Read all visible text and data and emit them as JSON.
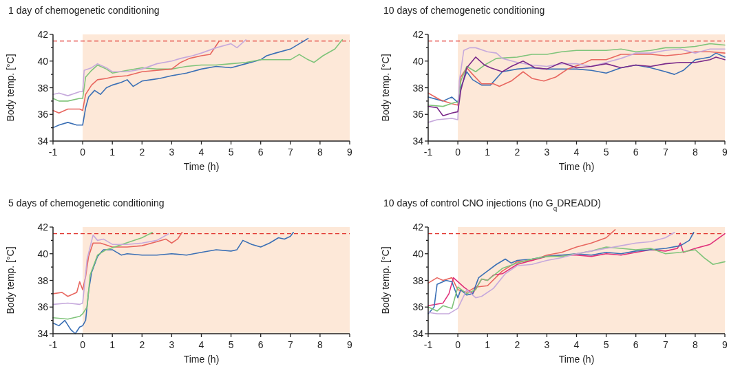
{
  "chart_data": [
    {
      "type": "line",
      "title": "1 day of chemogenetic conditioning",
      "xlabel": "Time (h)",
      "ylabel": "Body temp. [°C]",
      "xlim": [
        -1,
        9
      ],
      "xticks": [
        -1,
        0,
        1,
        2,
        3,
        4,
        5,
        6,
        7,
        8,
        9
      ],
      "ylim": [
        34,
        42
      ],
      "yticks": [
        34,
        {
          "value": 35,
          "label": null
        },
        36,
        {
          "value": 37,
          "label": null
        },
        38,
        {
          "value": 39,
          "label": null
        },
        40,
        {
          "value": 41,
          "label": null
        },
        42
      ],
      "ref_lines": [
        {
          "axis": "y",
          "value": 41.5,
          "color": "#e0302a",
          "line_style": "dashed"
        }
      ],
      "bands": [
        {
          "axis": "x",
          "from": 0,
          "to": 9,
          "color": "#fde8d8"
        }
      ],
      "series": [
        {
          "color": "#3a6fb5",
          "x": [
            -1,
            -0.8,
            -0.5,
            -0.2,
            0,
            0.1,
            0.2,
            0.4,
            0.6,
            0.8,
            1.0,
            1.3,
            1.5,
            1.7,
            2.0,
            2.3,
            2.6,
            3.0,
            3.5,
            4.0,
            4.5,
            5.0,
            5.5,
            6.0,
            6.2,
            6.5,
            7.0,
            7.3,
            7.6
          ],
          "values": [
            35.0,
            35.2,
            35.4,
            35.2,
            35.2,
            36.5,
            37.3,
            37.8,
            37.5,
            38.0,
            38.2,
            38.4,
            38.6,
            38.1,
            38.5,
            38.6,
            38.7,
            38.9,
            39.1,
            39.4,
            39.6,
            39.5,
            39.8,
            40.1,
            40.4,
            40.6,
            40.9,
            41.3,
            41.7
          ]
        },
        {
          "color": "#7fc47a",
          "x": [
            -1,
            -0.8,
            -0.5,
            -0.1,
            0,
            0.1,
            0.3,
            0.5,
            0.8,
            1.0,
            1.5,
            2.0,
            2.5,
            3.0,
            3.5,
            4.0,
            4.5,
            5.0,
            5.5,
            6.0,
            6.5,
            7.0,
            7.3,
            7.6,
            7.8,
            8.1,
            8.5,
            8.75
          ],
          "values": [
            37.2,
            37.0,
            37.0,
            37.2,
            37.2,
            38.8,
            39.3,
            39.7,
            39.4,
            39.1,
            39.3,
            39.5,
            39.4,
            39.4,
            39.6,
            39.7,
            39.7,
            39.8,
            39.9,
            40.1,
            40.1,
            40.1,
            40.5,
            40.1,
            39.9,
            40.4,
            40.9,
            41.6
          ]
        },
        {
          "color": "#e8665f",
          "x": [
            -1,
            -0.8,
            -0.5,
            -0.1,
            0,
            0.1,
            0.3,
            0.5,
            0.8,
            1.0,
            1.5,
            2.0,
            2.5,
            3.0,
            3.3,
            3.6,
            4.0,
            4.3,
            4.6
          ],
          "values": [
            36.3,
            36.1,
            36.4,
            36.4,
            36.3,
            37.5,
            38.2,
            38.6,
            38.7,
            38.8,
            38.9,
            39.2,
            39.3,
            39.4,
            39.9,
            40.2,
            40.4,
            40.5,
            41.5
          ]
        },
        {
          "color": "#c6a9dc",
          "x": [
            -1,
            -0.8,
            -0.5,
            -0.1,
            0,
            0.05,
            0.3,
            0.5,
            0.8,
            1.0,
            1.5,
            2.0,
            2.5,
            3.0,
            3.3,
            3.7,
            4.0,
            4.5,
            5.0,
            5.2,
            5.5
          ],
          "values": [
            37.5,
            37.6,
            37.4,
            37.7,
            37.7,
            39.3,
            39.5,
            39.8,
            39.5,
            39.2,
            39.2,
            39.4,
            39.8,
            40.0,
            40.2,
            40.4,
            40.6,
            41.0,
            41.3,
            41.0,
            41.6
          ]
        }
      ]
    },
    {
      "type": "line",
      "title": "10 days of chemogenetic conditioning",
      "xlabel": "Time (h)",
      "ylabel": "Body temp. [°C]",
      "xlim": [
        -1,
        9
      ],
      "xticks": [
        -1,
        0,
        1,
        2,
        3,
        4,
        5,
        6,
        7,
        8,
        9
      ],
      "ylim": [
        34,
        42
      ],
      "yticks": [
        34,
        {
          "value": 35,
          "label": null
        },
        36,
        {
          "value": 37,
          "label": null
        },
        38,
        {
          "value": 39,
          "label": null
        },
        40,
        {
          "value": 41,
          "label": null
        },
        42
      ],
      "ref_lines": [
        {
          "axis": "y",
          "value": 41.5,
          "color": "#e0302a",
          "line_style": "dashed"
        }
      ],
      "bands": [
        {
          "axis": "x",
          "from": 0,
          "to": 9,
          "color": "#fde8d8"
        }
      ],
      "series": [
        {
          "color": "#3a6fb5",
          "x": [
            -1,
            -0.5,
            -0.2,
            0,
            0.1,
            0.3,
            0.5,
            0.8,
            1.1,
            1.5,
            2.0,
            2.5,
            3.0,
            3.5,
            4.0,
            4.5,
            5.0,
            5.5,
            6.0,
            6.5,
            7.0,
            7.3,
            7.6,
            8.0,
            8.5,
            8.7,
            9.0
          ],
          "values": [
            37.3,
            37.0,
            37.3,
            36.9,
            38.0,
            39.2,
            38.6,
            38.2,
            38.2,
            39.2,
            39.4,
            39.5,
            39.4,
            39.4,
            39.4,
            39.3,
            39.1,
            39.5,
            39.7,
            39.5,
            39.2,
            39.0,
            39.3,
            40.1,
            40.3,
            40.6,
            40.3
          ]
        },
        {
          "color": "#e8665f",
          "x": [
            -1,
            -0.6,
            -0.2,
            0,
            0.1,
            0.3,
            0.5,
            0.8,
            1.2,
            1.4,
            1.8,
            2.2,
            2.5,
            2.9,
            3.3,
            3.7,
            4.2,
            4.5,
            5.0,
            5.5,
            6.0,
            6.5,
            7.0,
            7.5,
            8.0,
            8.5,
            9.0
          ],
          "values": [
            37.6,
            37.1,
            36.8,
            36.7,
            38.8,
            39.5,
            39.0,
            38.3,
            38.3,
            38.1,
            38.5,
            39.2,
            38.7,
            38.5,
            38.8,
            39.4,
            39.8,
            40.1,
            40.1,
            40.5,
            40.5,
            40.5,
            40.4,
            40.5,
            40.7,
            40.7,
            40.6
          ]
        },
        {
          "color": "#7fc47a",
          "x": [
            -1,
            -0.5,
            -0.1,
            0,
            0.1,
            0.3,
            0.6,
            0.9,
            1.3,
            2.0,
            2.5,
            3.0,
            3.5,
            4.0,
            4.5,
            5.0,
            5.5,
            6.0,
            6.5,
            7.0,
            7.5,
            8.0,
            8.5,
            9.0
          ],
          "values": [
            36.7,
            36.6,
            36.9,
            36.9,
            38.5,
            39.6,
            39.2,
            39.7,
            40.2,
            40.3,
            40.5,
            40.5,
            40.7,
            40.8,
            40.8,
            40.8,
            40.9,
            40.7,
            40.8,
            41.0,
            41.0,
            41.1,
            41.3,
            41.2
          ]
        },
        {
          "color": "#c6a9dc",
          "x": [
            -1,
            -0.7,
            -0.2,
            0,
            0.05,
            0.2,
            0.4,
            0.6,
            1.0,
            1.3,
            1.5,
            2.0,
            2.5,
            3.0,
            3.5,
            4.0,
            4.5,
            5.0,
            5.5,
            6.0,
            6.5,
            7.0,
            7.5,
            8.0,
            8.5,
            9.0
          ],
          "values": [
            35.4,
            35.6,
            35.7,
            35.6,
            38.5,
            40.8,
            41.0,
            41.0,
            40.7,
            40.6,
            40.2,
            39.9,
            39.7,
            39.6,
            39.8,
            39.8,
            39.6,
            39.9,
            40.2,
            40.6,
            40.6,
            40.8,
            40.9,
            40.6,
            40.9,
            40.9
          ]
        },
        {
          "color": "#7b2a8a",
          "x": [
            -1,
            -0.7,
            -0.5,
            -0.2,
            0,
            0.1,
            0.3,
            0.6,
            0.9,
            1.1,
            1.5,
            1.8,
            2.2,
            2.6,
            3.0,
            3.5,
            4.0,
            4.5,
            5.0,
            5.5,
            6.0,
            6.5,
            7.0,
            7.5,
            8.0,
            8.5,
            8.7,
            9.0
          ],
          "values": [
            36.6,
            36.5,
            35.9,
            36.1,
            36.2,
            37.8,
            39.5,
            40.3,
            39.7,
            39.5,
            39.2,
            39.6,
            40.0,
            39.5,
            39.4,
            39.9,
            39.5,
            39.6,
            39.8,
            39.5,
            39.7,
            39.6,
            39.8,
            39.9,
            39.9,
            40.1,
            40.3,
            40.1
          ]
        }
      ]
    },
    {
      "type": "line",
      "title": "5 days of chemogenetic conditioning",
      "xlabel": "Time (h)",
      "ylabel": "Body temp. [°C]",
      "xlim": [
        -1,
        9
      ],
      "xticks": [
        -1,
        0,
        1,
        2,
        3,
        4,
        5,
        6,
        7,
        8,
        9
      ],
      "ylim": [
        34,
        42
      ],
      "yticks": [
        34,
        {
          "value": 35,
          "label": null
        },
        36,
        {
          "value": 37,
          "label": null
        },
        38,
        {
          "value": 39,
          "label": null
        },
        40,
        {
          "value": 41,
          "label": null
        },
        42
      ],
      "ref_lines": [
        {
          "axis": "y",
          "value": 41.5,
          "color": "#e0302a",
          "line_style": "dashed"
        }
      ],
      "bands": [
        {
          "axis": "x",
          "from": 0,
          "to": 9,
          "color": "#fde8d8"
        }
      ],
      "series": [
        {
          "color": "#3a6fb5",
          "x": [
            -1,
            -0.8,
            -0.6,
            -0.4,
            -0.25,
            -0.1,
            0,
            0.1,
            0.2,
            0.3,
            0.5,
            0.7,
            1.0,
            1.3,
            1.5,
            2.0,
            2.5,
            3.0,
            3.5,
            4.0,
            4.5,
            5.0,
            5.2,
            5.4,
            5.7,
            6.0,
            6.3,
            6.6,
            6.8,
            7.0,
            7.1
          ],
          "values": [
            34.8,
            34.6,
            35.0,
            34.3,
            34.0,
            34.5,
            34.6,
            35.0,
            37.2,
            38.6,
            39.8,
            40.3,
            40.3,
            39.9,
            40.0,
            39.9,
            39.9,
            40.0,
            39.9,
            40.1,
            40.3,
            40.2,
            40.3,
            41.0,
            40.7,
            40.5,
            40.8,
            41.2,
            41.1,
            41.3,
            41.6
          ]
        },
        {
          "color": "#e8665f",
          "x": [
            -1,
            -0.7,
            -0.5,
            -0.2,
            -0.1,
            0,
            0.1,
            0.2,
            0.35,
            0.6,
            1.0,
            1.5,
            2.0,
            2.5,
            2.8,
            3.0,
            3.2,
            3.35
          ],
          "values": [
            37.0,
            37.1,
            36.8,
            37.1,
            37.9,
            37.3,
            38.3,
            39.8,
            40.8,
            40.8,
            40.5,
            40.5,
            40.6,
            40.9,
            41.1,
            40.8,
            41.1,
            41.6
          ]
        },
        {
          "color": "#7fc47a",
          "x": [
            -1,
            -0.5,
            -0.1,
            0,
            0.15,
            0.25,
            0.5,
            0.8,
            1.2,
            1.6,
            2.0,
            2.35
          ],
          "values": [
            35.2,
            35.1,
            35.3,
            35.5,
            36.0,
            38.4,
            39.9,
            40.3,
            40.6,
            40.9,
            41.2,
            41.6
          ]
        },
        {
          "color": "#c6a9dc",
          "x": [
            -1,
            -0.5,
            -0.1,
            0,
            0.15,
            0.35,
            0.5,
            0.7,
            1.0,
            1.5,
            2.0,
            2.5,
            2.9
          ],
          "values": [
            36.2,
            36.3,
            36.2,
            36.3,
            39.6,
            41.4,
            41.0,
            41.1,
            40.7,
            40.7,
            40.8,
            41.0,
            41.5
          ]
        }
      ]
    },
    {
      "type": "line",
      "title": "10 days of control CNO injections (no G$_{q}$DREADD)",
      "xlabel": "Time (h)",
      "ylabel": "Body temp. [°C]",
      "xlim": [
        -1,
        9
      ],
      "xticks": [
        -1,
        0,
        1,
        2,
        3,
        4,
        5,
        6,
        7,
        8,
        9
      ],
      "ylim": [
        34,
        42
      ],
      "yticks": [
        34,
        {
          "value": 35,
          "label": null
        },
        36,
        {
          "value": 37,
          "label": null
        },
        38,
        {
          "value": 39,
          "label": null
        },
        40,
        {
          "value": 41,
          "label": null
        },
        42
      ],
      "ref_lines": [
        {
          "axis": "y",
          "value": 41.5,
          "color": "#e0302a",
          "line_style": "dashed"
        }
      ],
      "bands": [
        {
          "axis": "x",
          "from": 0,
          "to": 9,
          "color": "#fde8d8"
        }
      ],
      "series": [
        {
          "color": "#e8665f",
          "x": [
            -1,
            -0.7,
            -0.5,
            -0.2,
            0,
            0.3,
            0.6,
            1.0,
            1.5,
            2.0,
            2.5,
            3.0,
            3.5,
            4.0,
            4.5,
            5.0,
            5.3
          ],
          "values": [
            37.8,
            38.2,
            38.0,
            38.2,
            37.3,
            37.1,
            37.5,
            37.6,
            38.7,
            39.4,
            39.5,
            39.9,
            40.1,
            40.5,
            40.8,
            41.2,
            41.8
          ]
        },
        {
          "color": "#e0307a",
          "x": [
            -1,
            -0.5,
            -0.3,
            -0.15,
            0,
            0.2,
            0.5,
            0.8,
            1.0,
            1.2,
            1.5,
            2.0,
            2.5,
            3.0,
            3.5,
            4.0,
            4.5,
            5.0,
            5.5,
            6.0,
            6.5,
            7.0,
            7.4,
            7.5,
            7.6,
            8.0,
            8.5,
            9.0
          ],
          "values": [
            36.1,
            36.3,
            37.0,
            38.2,
            37.9,
            37.5,
            37.0,
            38.1,
            38.0,
            38.4,
            38.5,
            39.2,
            39.5,
            39.8,
            39.9,
            39.9,
            39.8,
            40.0,
            39.9,
            40.1,
            40.3,
            40.2,
            40.4,
            40.8,
            40.1,
            40.4,
            40.7,
            41.5
          ]
        },
        {
          "color": "#3a6fb5",
          "x": [
            -1,
            -0.8,
            -0.7,
            -0.4,
            -0.2,
            0,
            0.1,
            0.3,
            0.5,
            0.7,
            1.0,
            1.3,
            1.6,
            1.8,
            2.0,
            2.5,
            3.0,
            3.5,
            4.0,
            4.5,
            5.0,
            5.5,
            6.0,
            6.5,
            7.0,
            7.5,
            7.8,
            7.95
          ],
          "values": [
            35.5,
            36.0,
            37.7,
            38.0,
            37.9,
            36.7,
            37.3,
            36.9,
            37.0,
            38.2,
            38.7,
            39.2,
            39.6,
            39.3,
            39.5,
            39.6,
            39.8,
            39.9,
            40.0,
            39.9,
            40.1,
            40.0,
            40.2,
            40.3,
            40.4,
            40.6,
            41.0,
            41.6
          ]
        },
        {
          "color": "#7fc47a",
          "x": [
            -1,
            -0.7,
            -0.5,
            -0.2,
            0,
            0.3,
            0.6,
            0.8,
            1.0,
            1.5,
            2.0,
            2.5,
            3.0,
            3.5,
            4.0,
            4.5,
            5.0,
            5.5,
            6.0,
            6.5,
            7.0,
            7.5,
            8.0,
            8.3,
            8.6,
            9.0
          ],
          "values": [
            36.0,
            35.7,
            36.1,
            35.9,
            37.5,
            37.0,
            37.3,
            38.1,
            38.0,
            38.9,
            39.3,
            39.6,
            39.8,
            39.8,
            40.0,
            40.2,
            40.5,
            40.4,
            40.3,
            40.4,
            40.0,
            40.1,
            40.3,
            39.7,
            39.2,
            39.4
          ]
        },
        {
          "color": "#c6a9dc",
          "x": [
            -1,
            -0.7,
            -0.3,
            0,
            0.3,
            0.6,
            0.8,
            1.2,
            1.6,
            2.0,
            2.5,
            3.0,
            3.5,
            4.0,
            4.5,
            5.0,
            5.5,
            6.0,
            6.5,
            7.0,
            7.3
          ],
          "values": [
            35.6,
            35.5,
            35.5,
            35.9,
            37.3,
            36.7,
            36.8,
            37.4,
            38.5,
            39.1,
            39.2,
            39.5,
            39.7,
            40.0,
            40.2,
            40.4,
            40.6,
            40.8,
            40.9,
            41.2,
            41.6
          ]
        }
      ]
    }
  ]
}
